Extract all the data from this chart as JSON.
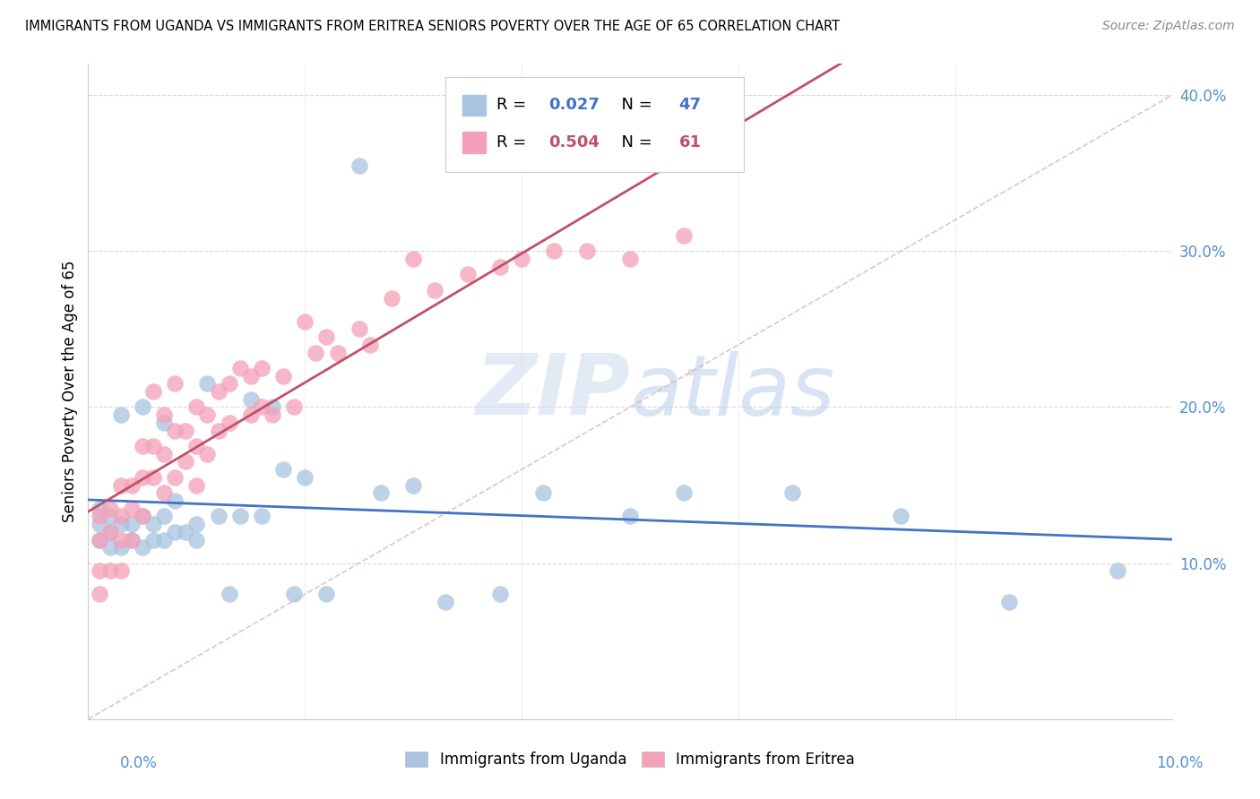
{
  "title": "IMMIGRANTS FROM UGANDA VS IMMIGRANTS FROM ERITREA SENIORS POVERTY OVER THE AGE OF 65 CORRELATION CHART",
  "source": "Source: ZipAtlas.com",
  "ylabel": "Seniors Poverty Over the Age of 65",
  "xlim": [
    0.0,
    0.1
  ],
  "ylim": [
    0.0,
    0.42
  ],
  "ytick_vals": [
    0.1,
    0.2,
    0.3,
    0.4
  ],
  "ytick_labels": [
    "10.0%",
    "20.0%",
    "30.0%",
    "40.0%"
  ],
  "uganda_R": 0.027,
  "uganda_N": 47,
  "eritrea_R": 0.504,
  "eritrea_N": 61,
  "uganda_color": "#a8c4e0",
  "eritrea_color": "#f4a0b8",
  "uganda_line_color": "#4472c4",
  "eritrea_line_color": "#c0506a",
  "diagonal_color": "#e0b0c0",
  "tick_label_color": "#5090d0",
  "watermark_color": "#ccddef",
  "uganda_scatter_x": [
    0.001,
    0.001,
    0.001,
    0.002,
    0.002,
    0.002,
    0.003,
    0.003,
    0.003,
    0.004,
    0.004,
    0.005,
    0.005,
    0.005,
    0.006,
    0.006,
    0.007,
    0.007,
    0.007,
    0.008,
    0.008,
    0.009,
    0.01,
    0.01,
    0.011,
    0.012,
    0.013,
    0.014,
    0.015,
    0.016,
    0.017,
    0.018,
    0.019,
    0.02,
    0.022,
    0.025,
    0.027,
    0.03,
    0.033,
    0.038,
    0.042,
    0.05,
    0.055,
    0.065,
    0.075,
    0.085,
    0.095
  ],
  "uganda_scatter_y": [
    0.135,
    0.125,
    0.115,
    0.13,
    0.12,
    0.11,
    0.195,
    0.125,
    0.11,
    0.125,
    0.115,
    0.2,
    0.13,
    0.11,
    0.125,
    0.115,
    0.19,
    0.13,
    0.115,
    0.14,
    0.12,
    0.12,
    0.125,
    0.115,
    0.215,
    0.13,
    0.08,
    0.13,
    0.205,
    0.13,
    0.2,
    0.16,
    0.08,
    0.155,
    0.08,
    0.355,
    0.145,
    0.15,
    0.075,
    0.08,
    0.145,
    0.13,
    0.145,
    0.145,
    0.13,
    0.075,
    0.095
  ],
  "eritrea_scatter_x": [
    0.001,
    0.001,
    0.001,
    0.001,
    0.002,
    0.002,
    0.002,
    0.003,
    0.003,
    0.003,
    0.003,
    0.004,
    0.004,
    0.004,
    0.005,
    0.005,
    0.005,
    0.006,
    0.006,
    0.006,
    0.007,
    0.007,
    0.007,
    0.008,
    0.008,
    0.008,
    0.009,
    0.009,
    0.01,
    0.01,
    0.01,
    0.011,
    0.011,
    0.012,
    0.012,
    0.013,
    0.013,
    0.014,
    0.015,
    0.015,
    0.016,
    0.016,
    0.017,
    0.018,
    0.019,
    0.02,
    0.021,
    0.022,
    0.023,
    0.025,
    0.026,
    0.028,
    0.03,
    0.032,
    0.035,
    0.038,
    0.04,
    0.043,
    0.046,
    0.05,
    0.055
  ],
  "eritrea_scatter_y": [
    0.13,
    0.115,
    0.095,
    0.08,
    0.135,
    0.12,
    0.095,
    0.15,
    0.13,
    0.115,
    0.095,
    0.15,
    0.135,
    0.115,
    0.175,
    0.155,
    0.13,
    0.21,
    0.175,
    0.155,
    0.195,
    0.17,
    0.145,
    0.215,
    0.185,
    0.155,
    0.185,
    0.165,
    0.2,
    0.175,
    0.15,
    0.195,
    0.17,
    0.21,
    0.185,
    0.215,
    0.19,
    0.225,
    0.22,
    0.195,
    0.225,
    0.2,
    0.195,
    0.22,
    0.2,
    0.255,
    0.235,
    0.245,
    0.235,
    0.25,
    0.24,
    0.27,
    0.295,
    0.275,
    0.285,
    0.29,
    0.295,
    0.3,
    0.3,
    0.295,
    0.31
  ]
}
